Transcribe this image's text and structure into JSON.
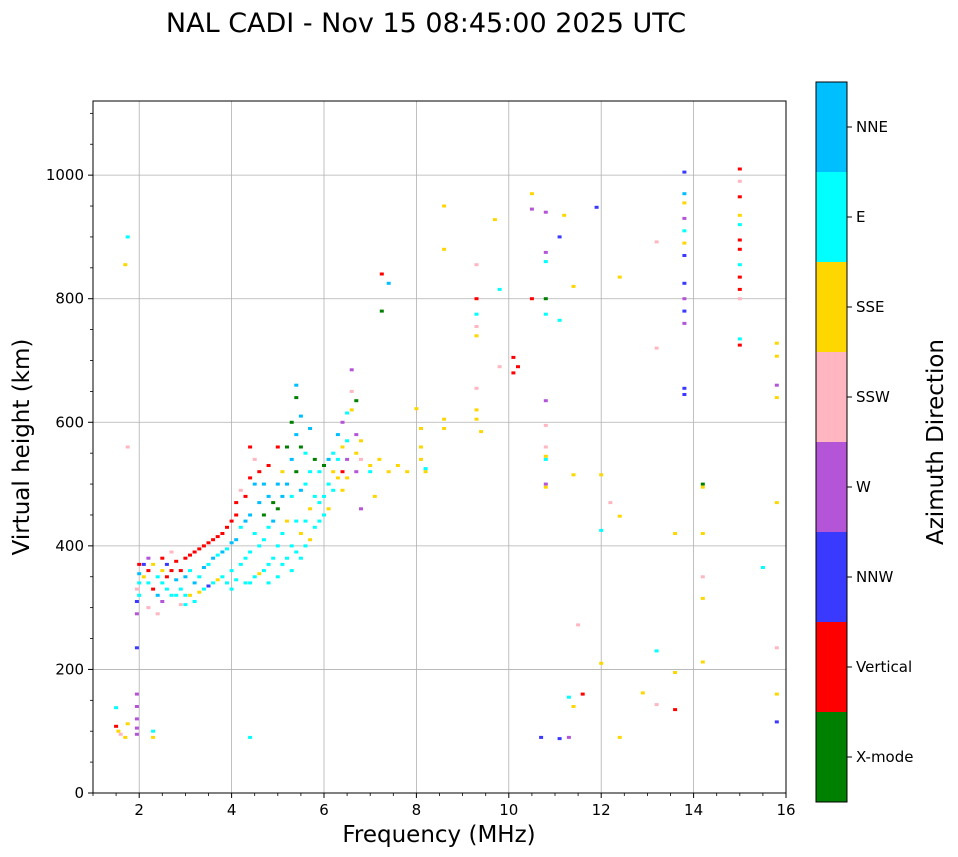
{
  "chart_data": {
    "type": "scatter",
    "title": "NAL CADI - Nov 15 08:45:00 2025 UTC",
    "xlabel": "Frequency (MHz)",
    "ylabel": "Virtual height (km)",
    "xlim": [
      1,
      16
    ],
    "ylim": [
      0,
      1120
    ],
    "xticks": [
      2,
      4,
      6,
      8,
      10,
      12,
      14,
      16
    ],
    "yticks": [
      0,
      200,
      400,
      600,
      800,
      1000
    ],
    "grid": true,
    "colorbar": {
      "label": "Azimuth Direction",
      "categories": [
        "X-mode",
        "Vertical",
        "NNW",
        "W",
        "SSW",
        "SSE",
        "E",
        "NNE"
      ],
      "colors": {
        "X-mode": "#008000",
        "Vertical": "#ff0000",
        "NNW": "#3a3aff",
        "W": "#b455d8",
        "SSW": "#ffb6c1",
        "SSE": "#ffd700",
        "E": "#00ffff",
        "NNE": "#00bfff"
      }
    },
    "points": [
      [
        1.5,
        138,
        "E"
      ],
      [
        1.5,
        108,
        "Vertical"
      ],
      [
        1.55,
        100,
        "SSE"
      ],
      [
        1.6,
        95,
        "SSW"
      ],
      [
        1.7,
        90,
        "SSE"
      ],
      [
        1.75,
        112,
        "SSE"
      ],
      [
        1.75,
        900,
        "E"
      ],
      [
        1.7,
        855,
        "SSE"
      ],
      [
        1.75,
        560,
        "SSW"
      ],
      [
        1.95,
        235,
        "NNW"
      ],
      [
        1.95,
        160,
        "W"
      ],
      [
        1.95,
        140,
        "W"
      ],
      [
        1.95,
        120,
        "W"
      ],
      [
        1.95,
        105,
        "W"
      ],
      [
        1.95,
        95,
        "W"
      ],
      [
        1.95,
        290,
        "W"
      ],
      [
        1.95,
        310,
        "NNW"
      ],
      [
        1.95,
        330,
        "SSW"
      ],
      [
        2.0,
        370,
        "Vertical"
      ],
      [
        2.0,
        355,
        "NNE"
      ],
      [
        2.0,
        340,
        "E"
      ],
      [
        2.0,
        320,
        "E"
      ],
      [
        2.1,
        370,
        "NNW"
      ],
      [
        2.1,
        350,
        "SSE"
      ],
      [
        2.2,
        380,
        "W"
      ],
      [
        2.2,
        360,
        "Vertical"
      ],
      [
        2.2,
        340,
        "E"
      ],
      [
        2.2,
        300,
        "SSW"
      ],
      [
        2.3,
        100,
        "E"
      ],
      [
        2.3,
        90,
        "SSE"
      ],
      [
        2.3,
        370,
        "SSE"
      ],
      [
        2.3,
        330,
        "Vertical"
      ],
      [
        2.4,
        350,
        "E"
      ],
      [
        2.4,
        320,
        "NNE"
      ],
      [
        2.4,
        290,
        "SSW"
      ],
      [
        2.5,
        380,
        "Vertical"
      ],
      [
        2.5,
        360,
        "SSE"
      ],
      [
        2.5,
        340,
        "E"
      ],
      [
        2.5,
        310,
        "W"
      ],
      [
        2.6,
        370,
        "NNW"
      ],
      [
        2.6,
        350,
        "Vertical"
      ],
      [
        2.6,
        330,
        "E"
      ],
      [
        2.7,
        390,
        "SSW"
      ],
      [
        2.7,
        360,
        "Vertical"
      ],
      [
        2.7,
        320,
        "E"
      ],
      [
        2.8,
        375,
        "Vertical"
      ],
      [
        2.8,
        345,
        "NNE"
      ],
      [
        2.8,
        320,
        "E"
      ],
      [
        2.9,
        360,
        "Vertical"
      ],
      [
        2.9,
        330,
        "E"
      ],
      [
        2.9,
        305,
        "SSW"
      ],
      [
        3.0,
        380,
        "Vertical"
      ],
      [
        3.0,
        350,
        "NNE"
      ],
      [
        3.0,
        320,
        "E"
      ],
      [
        3.0,
        305,
        "E"
      ],
      [
        3.1,
        385,
        "Vertical"
      ],
      [
        3.1,
        360,
        "E"
      ],
      [
        3.1,
        320,
        "SSE"
      ],
      [
        3.2,
        390,
        "Vertical"
      ],
      [
        3.2,
        340,
        "NNE"
      ],
      [
        3.2,
        310,
        "E"
      ],
      [
        3.3,
        395,
        "Vertical"
      ],
      [
        3.3,
        350,
        "E"
      ],
      [
        3.3,
        325,
        "SSE"
      ],
      [
        3.4,
        400,
        "Vertical"
      ],
      [
        3.4,
        365,
        "NNE"
      ],
      [
        3.4,
        330,
        "E"
      ],
      [
        3.5,
        405,
        "Vertical"
      ],
      [
        3.5,
        370,
        "E"
      ],
      [
        3.5,
        335,
        "NNW"
      ],
      [
        3.6,
        410,
        "Vertical"
      ],
      [
        3.6,
        380,
        "NNE"
      ],
      [
        3.6,
        340,
        "E"
      ],
      [
        3.7,
        415,
        "Vertical"
      ],
      [
        3.7,
        385,
        "E"
      ],
      [
        3.7,
        345,
        "SSE"
      ],
      [
        3.8,
        420,
        "Vertical"
      ],
      [
        3.8,
        390,
        "NNE"
      ],
      [
        3.8,
        350,
        "E"
      ],
      [
        3.9,
        430,
        "Vertical"
      ],
      [
        3.9,
        395,
        "E"
      ],
      [
        3.9,
        340,
        "E"
      ],
      [
        4.0,
        440,
        "Vertical"
      ],
      [
        4.0,
        405,
        "NNE"
      ],
      [
        4.0,
        360,
        "E"
      ],
      [
        4.0,
        330,
        "E"
      ],
      [
        4.1,
        470,
        "Vertical"
      ],
      [
        4.1,
        450,
        "Vertical"
      ],
      [
        4.1,
        410,
        "NNE"
      ],
      [
        4.1,
        345,
        "E"
      ],
      [
        4.2,
        490,
        "SSW"
      ],
      [
        4.2,
        430,
        "E"
      ],
      [
        4.2,
        370,
        "E"
      ],
      [
        4.3,
        480,
        "Vertical"
      ],
      [
        4.3,
        440,
        "NNE"
      ],
      [
        4.3,
        380,
        "E"
      ],
      [
        4.3,
        340,
        "E"
      ],
      [
        4.4,
        560,
        "Vertical"
      ],
      [
        4.4,
        510,
        "Vertical"
      ],
      [
        4.4,
        450,
        "NNE"
      ],
      [
        4.4,
        390,
        "E"
      ],
      [
        4.4,
        340,
        "E"
      ],
      [
        4.4,
        90,
        "E"
      ],
      [
        4.5,
        540,
        "SSW"
      ],
      [
        4.5,
        500,
        "NNE"
      ],
      [
        4.5,
        420,
        "E"
      ],
      [
        4.5,
        350,
        "E"
      ],
      [
        4.6,
        520,
        "Vertical"
      ],
      [
        4.6,
        470,
        "NNE"
      ],
      [
        4.6,
        400,
        "E"
      ],
      [
        4.6,
        355,
        "SSE"
      ],
      [
        4.7,
        500,
        "NNE"
      ],
      [
        4.7,
        450,
        "X-mode"
      ],
      [
        4.7,
        410,
        "E"
      ],
      [
        4.7,
        360,
        "E"
      ],
      [
        4.8,
        530,
        "Vertical"
      ],
      [
        4.8,
        480,
        "NNE"
      ],
      [
        4.8,
        430,
        "E"
      ],
      [
        4.8,
        370,
        "E"
      ],
      [
        4.8,
        340,
        "E"
      ],
      [
        4.9,
        470,
        "X-mode"
      ],
      [
        4.9,
        440,
        "NNE"
      ],
      [
        4.9,
        380,
        "E"
      ],
      [
        5.0,
        560,
        "Vertical"
      ],
      [
        5.0,
        500,
        "NNE"
      ],
      [
        5.0,
        460,
        "X-mode"
      ],
      [
        5.0,
        400,
        "E"
      ],
      [
        5.0,
        350,
        "E"
      ],
      [
        5.1,
        520,
        "SSE"
      ],
      [
        5.1,
        480,
        "NNE"
      ],
      [
        5.1,
        420,
        "E"
      ],
      [
        5.1,
        370,
        "E"
      ],
      [
        5.2,
        560,
        "X-mode"
      ],
      [
        5.2,
        500,
        "NNE"
      ],
      [
        5.2,
        440,
        "SSE"
      ],
      [
        5.2,
        380,
        "E"
      ],
      [
        5.3,
        600,
        "X-mode"
      ],
      [
        5.3,
        540,
        "NNE"
      ],
      [
        5.3,
        480,
        "E"
      ],
      [
        5.3,
        400,
        "E"
      ],
      [
        5.3,
        360,
        "E"
      ],
      [
        5.4,
        660,
        "NNE"
      ],
      [
        5.4,
        640,
        "X-mode"
      ],
      [
        5.4,
        580,
        "NNE"
      ],
      [
        5.4,
        520,
        "X-mode"
      ],
      [
        5.4,
        440,
        "E"
      ],
      [
        5.4,
        390,
        "E"
      ],
      [
        5.5,
        610,
        "NNE"
      ],
      [
        5.5,
        560,
        "X-mode"
      ],
      [
        5.5,
        490,
        "NNE"
      ],
      [
        5.5,
        420,
        "SSE"
      ],
      [
        5.5,
        380,
        "E"
      ],
      [
        5.6,
        550,
        "E"
      ],
      [
        5.6,
        500,
        "E"
      ],
      [
        5.6,
        440,
        "E"
      ],
      [
        5.6,
        400,
        "E"
      ],
      [
        5.7,
        590,
        "NNE"
      ],
      [
        5.7,
        520,
        "E"
      ],
      [
        5.7,
        460,
        "SSE"
      ],
      [
        5.7,
        410,
        "SSE"
      ],
      [
        5.8,
        540,
        "X-mode"
      ],
      [
        5.8,
        480,
        "E"
      ],
      [
        5.8,
        430,
        "E"
      ],
      [
        5.9,
        520,
        "E"
      ],
      [
        5.9,
        470,
        "E"
      ],
      [
        5.9,
        440,
        "E"
      ],
      [
        6.0,
        530,
        "X-mode"
      ],
      [
        6.0,
        480,
        "E"
      ],
      [
        6.0,
        450,
        "E"
      ],
      [
        6.1,
        540,
        "NNE"
      ],
      [
        6.1,
        500,
        "E"
      ],
      [
        6.1,
        460,
        "SSE"
      ],
      [
        6.2,
        550,
        "E"
      ],
      [
        6.2,
        520,
        "SSE"
      ],
      [
        6.2,
        490,
        "E"
      ],
      [
        6.3,
        580,
        "NNE"
      ],
      [
        6.3,
        540,
        "E"
      ],
      [
        6.3,
        510,
        "SSE"
      ],
      [
        6.4,
        600,
        "W"
      ],
      [
        6.4,
        560,
        "SSE"
      ],
      [
        6.4,
        520,
        "Vertical"
      ],
      [
        6.4,
        490,
        "SSE"
      ],
      [
        6.5,
        615,
        "E"
      ],
      [
        6.5,
        570,
        "E"
      ],
      [
        6.5,
        540,
        "W"
      ],
      [
        6.5,
        510,
        "SSE"
      ],
      [
        6.6,
        685,
        "W"
      ],
      [
        6.6,
        650,
        "SSW"
      ],
      [
        6.6,
        620,
        "SSE"
      ],
      [
        6.7,
        635,
        "X-mode"
      ],
      [
        6.7,
        580,
        "W"
      ],
      [
        6.7,
        550,
        "SSE"
      ],
      [
        6.7,
        520,
        "W"
      ],
      [
        6.8,
        570,
        "SSE"
      ],
      [
        6.8,
        540,
        "SSW"
      ],
      [
        6.8,
        460,
        "W"
      ],
      [
        7.0,
        530,
        "SSE"
      ],
      [
        7.0,
        520,
        "E"
      ],
      [
        7.1,
        480,
        "SSE"
      ],
      [
        7.2,
        540,
        "SSE"
      ],
      [
        7.25,
        840,
        "Vertical"
      ],
      [
        7.25,
        780,
        "X-mode"
      ],
      [
        7.4,
        825,
        "NNE"
      ],
      [
        7.4,
        520,
        "SSE"
      ],
      [
        7.6,
        530,
        "SSE"
      ],
      [
        7.8,
        520,
        "SSE"
      ],
      [
        8.0,
        622,
        "SSE"
      ],
      [
        8.1,
        590,
        "SSE"
      ],
      [
        8.1,
        560,
        "SSE"
      ],
      [
        8.1,
        540,
        "SSE"
      ],
      [
        8.2,
        520,
        "SSE"
      ],
      [
        8.2,
        525,
        "E"
      ],
      [
        8.6,
        950,
        "SSE"
      ],
      [
        8.6,
        880,
        "SSE"
      ],
      [
        8.6,
        605,
        "SSE"
      ],
      [
        8.6,
        590,
        "SSE"
      ],
      [
        9.3,
        855,
        "SSW"
      ],
      [
        9.3,
        800,
        "Vertical"
      ],
      [
        9.3,
        775,
        "E"
      ],
      [
        9.3,
        755,
        "SSW"
      ],
      [
        9.3,
        740,
        "SSE"
      ],
      [
        9.3,
        655,
        "SSW"
      ],
      [
        9.3,
        620,
        "SSE"
      ],
      [
        9.3,
        605,
        "SSE"
      ],
      [
        9.4,
        585,
        "SSE"
      ],
      [
        9.7,
        928,
        "SSE"
      ],
      [
        9.8,
        815,
        "E"
      ],
      [
        9.8,
        690,
        "SSW"
      ],
      [
        10.1,
        705,
        "Vertical"
      ],
      [
        10.1,
        680,
        "Vertical"
      ],
      [
        10.2,
        690,
        "Vertical"
      ],
      [
        10.5,
        970,
        "SSE"
      ],
      [
        10.5,
        945,
        "W"
      ],
      [
        10.5,
        800,
        "Vertical"
      ],
      [
        10.7,
        90,
        "NNW"
      ],
      [
        10.8,
        940,
        "W"
      ],
      [
        10.8,
        875,
        "W"
      ],
      [
        10.8,
        860,
        "E"
      ],
      [
        10.8,
        800,
        "X-mode"
      ],
      [
        10.8,
        775,
        "E"
      ],
      [
        10.8,
        635,
        "W"
      ],
      [
        10.8,
        595,
        "SSW"
      ],
      [
        10.8,
        560,
        "SSW"
      ],
      [
        10.8,
        545,
        "SSE"
      ],
      [
        10.8,
        540,
        "E"
      ],
      [
        10.8,
        500,
        "W"
      ],
      [
        10.8,
        495,
        "SSE"
      ],
      [
        11.1,
        900,
        "NNW"
      ],
      [
        11.1,
        765,
        "E"
      ],
      [
        11.1,
        88,
        "NNW"
      ],
      [
        11.2,
        935,
        "SSE"
      ],
      [
        11.3,
        90,
        "W"
      ],
      [
        11.3,
        155,
        "E"
      ],
      [
        11.4,
        820,
        "SSE"
      ],
      [
        11.4,
        515,
        "SSE"
      ],
      [
        11.4,
        140,
        "SSE"
      ],
      [
        11.5,
        272,
        "SSW"
      ],
      [
        11.6,
        160,
        "Vertical"
      ],
      [
        11.9,
        948,
        "NNW"
      ],
      [
        12.0,
        515,
        "SSE"
      ],
      [
        12.0,
        425,
        "E"
      ],
      [
        12.0,
        210,
        "SSE"
      ],
      [
        12.2,
        470,
        "SSW"
      ],
      [
        12.4,
        835,
        "SSE"
      ],
      [
        12.4,
        448,
        "SSE"
      ],
      [
        12.4,
        90,
        "SSE"
      ],
      [
        12.9,
        162,
        "SSE"
      ],
      [
        13.2,
        892,
        "SSW"
      ],
      [
        13.2,
        720,
        "SSW"
      ],
      [
        13.2,
        230,
        "E"
      ],
      [
        13.2,
        143,
        "SSW"
      ],
      [
        13.6,
        195,
        "SSE"
      ],
      [
        13.6,
        135,
        "Vertical"
      ],
      [
        13.6,
        420,
        "SSE"
      ],
      [
        13.8,
        1005,
        "NNW"
      ],
      [
        13.8,
        970,
        "NNE"
      ],
      [
        13.8,
        955,
        "SSE"
      ],
      [
        13.8,
        930,
        "W"
      ],
      [
        13.8,
        910,
        "E"
      ],
      [
        13.8,
        890,
        "SSE"
      ],
      [
        13.8,
        870,
        "NNW"
      ],
      [
        13.8,
        825,
        "NNW"
      ],
      [
        13.8,
        800,
        "W"
      ],
      [
        13.8,
        780,
        "NNW"
      ],
      [
        13.8,
        760,
        "W"
      ],
      [
        13.8,
        655,
        "NNW"
      ],
      [
        13.8,
        645,
        "NNW"
      ],
      [
        14.2,
        500,
        "X-mode"
      ],
      [
        14.2,
        495,
        "SSE"
      ],
      [
        14.2,
        420,
        "SSE"
      ],
      [
        14.2,
        350,
        "SSW"
      ],
      [
        14.2,
        315,
        "SSE"
      ],
      [
        14.2,
        212,
        "SSE"
      ],
      [
        15.0,
        1010,
        "Vertical"
      ],
      [
        15.0,
        990,
        "SSW"
      ],
      [
        15.0,
        965,
        "Vertical"
      ],
      [
        15.0,
        935,
        "SSE"
      ],
      [
        15.0,
        920,
        "E"
      ],
      [
        15.0,
        895,
        "Vertical"
      ],
      [
        15.0,
        880,
        "Vertical"
      ],
      [
        15.0,
        855,
        "E"
      ],
      [
        15.0,
        835,
        "Vertical"
      ],
      [
        15.0,
        815,
        "Vertical"
      ],
      [
        15.0,
        800,
        "SSW"
      ],
      [
        15.0,
        735,
        "E"
      ],
      [
        15.0,
        725,
        "Vertical"
      ],
      [
        15.5,
        365,
        "E"
      ],
      [
        15.8,
        728,
        "SSE"
      ],
      [
        15.8,
        707,
        "SSE"
      ],
      [
        15.8,
        660,
        "W"
      ],
      [
        15.8,
        640,
        "SSE"
      ],
      [
        15.8,
        470,
        "SSE"
      ],
      [
        15.8,
        235,
        "SSW"
      ],
      [
        15.8,
        160,
        "SSE"
      ],
      [
        15.8,
        115,
        "NNW"
      ]
    ]
  }
}
